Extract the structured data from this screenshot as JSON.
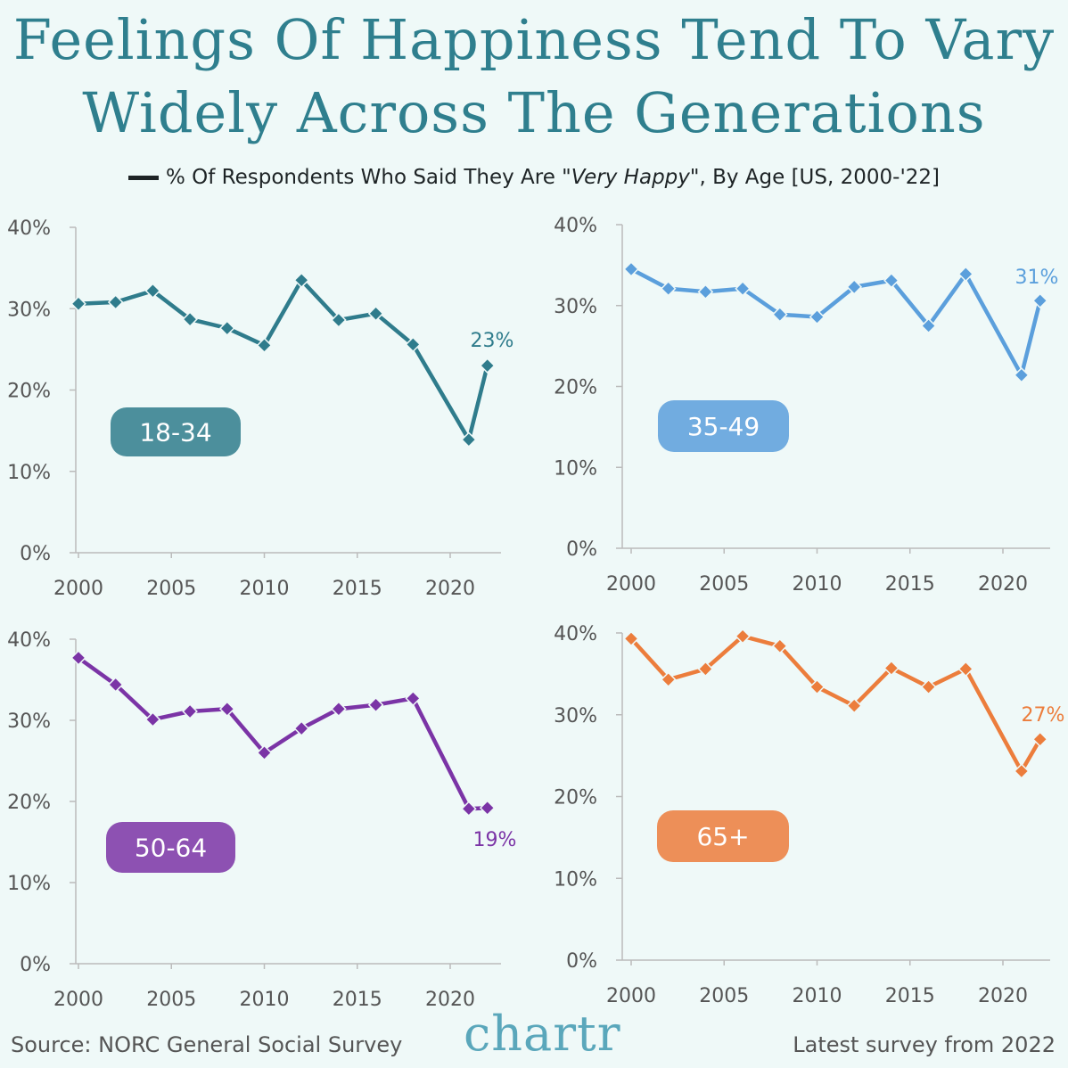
{
  "title_line1": "Feelings Of Happiness Tend To Vary",
  "title_line2": "Widely Across The Generations",
  "legend": {
    "prefix": "% Of Respondents Who Said They Are \"",
    "italic": "Very Happy",
    "suffix": "\", By Age [US, 2000-'22]",
    "color": "#1e2426"
  },
  "source": "Source: NORC General Social Survey",
  "logo": "chartr",
  "latest": "Latest survey from 2022",
  "chart_data": [
    {
      "type": "line",
      "label": "18-34",
      "color": "#2f7c8c",
      "end_label": "23%",
      "ylim": [
        0,
        40
      ],
      "xlim": [
        2000,
        2022
      ],
      "yticks": [
        "0%",
        "10%",
        "20%",
        "30%",
        "40%"
      ],
      "xticks": [
        "2000",
        "2005",
        "2010",
        "2015",
        "2020"
      ],
      "x": [
        2000,
        2002,
        2004,
        2006,
        2008,
        2010,
        2012,
        2014,
        2016,
        2018,
        2021,
        2022
      ],
      "y": [
        30.6,
        30.8,
        32.2,
        28.7,
        27.6,
        25.5,
        33.5,
        28.6,
        29.4,
        25.6,
        13.9,
        23.0
      ]
    },
    {
      "type": "line",
      "label": "35-49",
      "color": "#5b9fdc",
      "end_label": "31%",
      "ylim": [
        0,
        40
      ],
      "xlim": [
        2000,
        2022
      ],
      "yticks": [
        "0%",
        "10%",
        "20%",
        "30%",
        "40%"
      ],
      "xticks": [
        "2000",
        "2005",
        "2010",
        "2015",
        "2020"
      ],
      "x": [
        2000,
        2002,
        2004,
        2006,
        2008,
        2010,
        2012,
        2014,
        2016,
        2018,
        2021,
        2022
      ],
      "y": [
        34.5,
        32.1,
        31.7,
        32.1,
        28.9,
        28.6,
        32.3,
        33.1,
        27.5,
        33.9,
        21.4,
        30.6
      ]
    },
    {
      "type": "line",
      "label": "50-64",
      "color": "#7b34a6",
      "end_label": "19%",
      "ylim": [
        0,
        40
      ],
      "xlim": [
        2000,
        2022
      ],
      "yticks": [
        "0%",
        "10%",
        "20%",
        "30%",
        "40%"
      ],
      "xticks": [
        "2000",
        "2005",
        "2010",
        "2015",
        "2020"
      ],
      "x": [
        2000,
        2002,
        2004,
        2006,
        2008,
        2010,
        2012,
        2014,
        2016,
        2018,
        2021,
        2022
      ],
      "y": [
        37.7,
        34.4,
        30.1,
        31.1,
        31.4,
        26.0,
        29.0,
        31.4,
        31.9,
        32.7,
        19.1,
        19.2
      ]
    },
    {
      "type": "line",
      "label": "65+",
      "color": "#ec7d3c",
      "end_label": "27%",
      "ylim": [
        0,
        40
      ],
      "xlim": [
        2000,
        2022
      ],
      "yticks": [
        "0%",
        "10%",
        "20%",
        "30%",
        "40%"
      ],
      "xticks": [
        "2000",
        "2005",
        "2010",
        "2015",
        "2020"
      ],
      "x": [
        2000,
        2002,
        2004,
        2006,
        2008,
        2010,
        2012,
        2014,
        2016,
        2018,
        2021,
        2022
      ],
      "y": [
        39.3,
        34.3,
        35.6,
        39.6,
        38.4,
        33.4,
        31.1,
        35.7,
        33.4,
        35.6,
        23.1,
        27.0
      ]
    }
  ]
}
